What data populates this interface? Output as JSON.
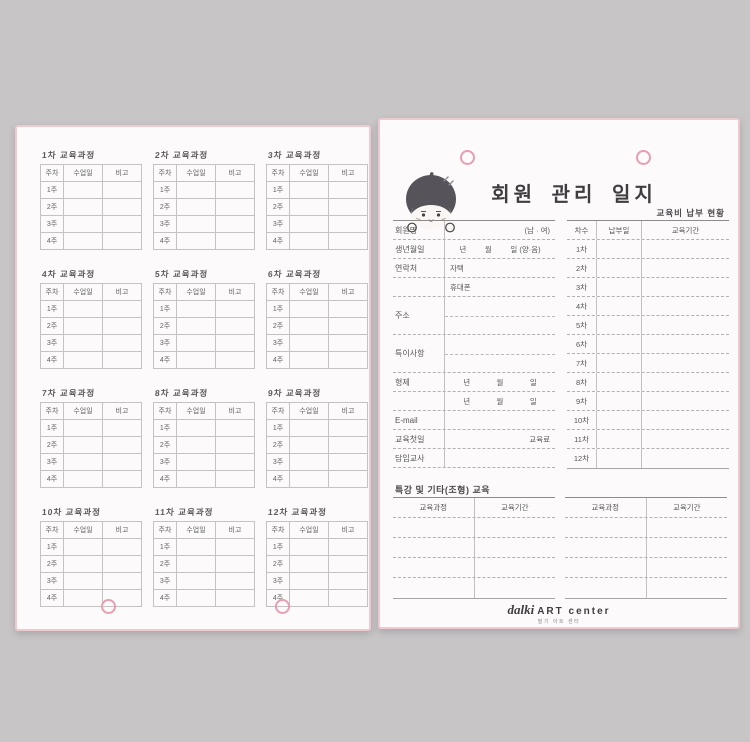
{
  "background_color": "#c7c5c6",
  "accent": {
    "page_border_pink": "#eec9d0",
    "hole_ring_pink": "#e79fb0",
    "rule_gray": "#b5b0b0",
    "text_dark": "#4c4a4c"
  },
  "left_page": {
    "table_headers": [
      "주차",
      "수업일",
      "비고"
    ],
    "week_labels": [
      "1주",
      "2주",
      "3주",
      "4주"
    ],
    "tables": [
      {
        "title": "1차 교육과정"
      },
      {
        "title": "2차 교육과정"
      },
      {
        "title": "3차 교육과정"
      },
      {
        "title": "4차 교육과정"
      },
      {
        "title": "5차 교육과정"
      },
      {
        "title": "6차 교육과정"
      },
      {
        "title": "7차 교육과정"
      },
      {
        "title": "8차 교육과정"
      },
      {
        "title": "9차 교육과정"
      },
      {
        "title": "10차 교육과정"
      },
      {
        "title": "11차 교육과정"
      },
      {
        "title": "12차 교육과정"
      }
    ]
  },
  "right_page": {
    "title": "회원 관리 일지",
    "payment": {
      "title": "교육비 납부 현황",
      "headers": [
        "차수",
        "납부일",
        "교육기간"
      ],
      "row_labels": [
        "1차",
        "2차",
        "3차",
        "4차",
        "5차",
        "6차",
        "7차",
        "8차",
        "9차",
        "10차",
        "11차",
        "12차"
      ]
    },
    "member_form": {
      "rows": [
        {
          "label": "회원명",
          "note": "(남 · 여)"
        },
        {
          "label": "생년월일",
          "parts": [
            "년",
            "월",
            "일 (양·음)"
          ]
        },
        {
          "label": "연락처",
          "value": "자택"
        },
        {
          "label": "",
          "value": "휴대폰"
        },
        {
          "label": "주소",
          "tall": true
        },
        {
          "label": "특이사항",
          "tall": true
        },
        {
          "label": "형제",
          "parts": [
            "년",
            "월",
            "일"
          ]
        },
        {
          "label": "",
          "parts": [
            "년",
            "월",
            "일"
          ]
        },
        {
          "label": "E-mail"
        },
        {
          "label": "교육첫일",
          "note": "교육료"
        },
        {
          "label": "담임교사"
        }
      ]
    },
    "special_section": {
      "title": "특강 및 기타(조형) 교육",
      "headers": [
        "교육과정",
        "교육기간"
      ],
      "empty_rows": 4,
      "table_count": 2
    },
    "logo": {
      "script": "dalki",
      "caps": "ART center",
      "tagline": "딸기 아트 센터"
    }
  }
}
